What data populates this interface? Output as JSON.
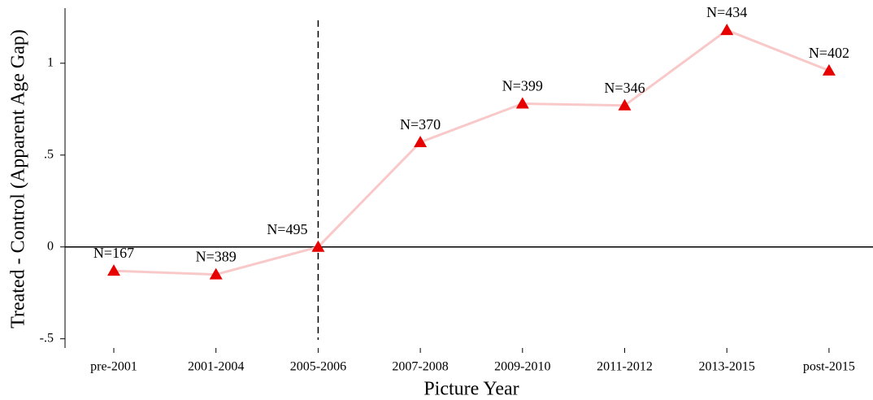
{
  "chart_data": {
    "type": "line",
    "x_label": "Picture Year",
    "y_label": "Treated - Control (Apparent Age Gap)",
    "categories": [
      "pre-2001",
      "2001-2004",
      "2005-2006",
      "2007-2008",
      "2009-2010",
      "2011-2012",
      "2013-2015",
      "post-2015"
    ],
    "values": [
      -0.13,
      -0.15,
      0,
      0.57,
      0.78,
      0.77,
      1.18,
      0.96
    ],
    "point_labels": [
      "N=167",
      "N=389",
      "N=495",
      "N=370",
      "N=399",
      "N=346",
      "N=434",
      "N=402"
    ],
    "line_color": "#f9c9c9",
    "marker_color": "#e60000",
    "ylim": [
      -0.55,
      1.3
    ],
    "yticks": [
      {
        "value": -0.5,
        "label": "-.5"
      },
      0,
      {
        "value": 0.5,
        "label": ".5"
      },
      1
    ],
    "hline": 0,
    "vline_at": 2
  }
}
